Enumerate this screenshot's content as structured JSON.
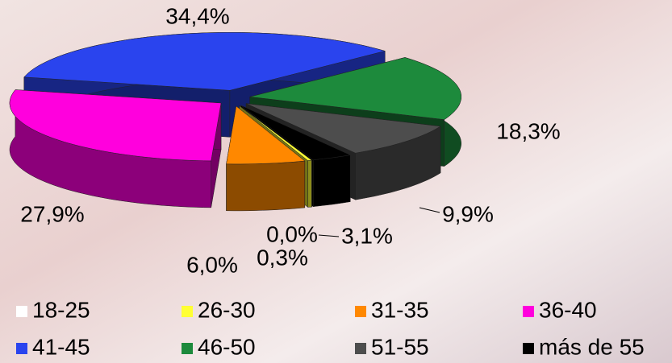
{
  "chart_data": {
    "type": "pie",
    "categories": [
      "18-25",
      "26-30",
      "31-35",
      "36-40",
      "41-45",
      "46-50",
      "51-55",
      "más de 55"
    ],
    "values": [
      0.0,
      0.3,
      6.0,
      27.9,
      34.4,
      18.3,
      9.9,
      3.1
    ],
    "value_labels": [
      "0,0%",
      "0,3%",
      "6,0%",
      "27,9%",
      "34,4%",
      "18,3%",
      "9,9%",
      "3,1%"
    ],
    "colors": [
      "#ffffff",
      "#ffff33",
      "#ff8800",
      "#ff00dd",
      "#2a44ee",
      "#1d8a3c",
      "#4d4d4d",
      "#000000"
    ],
    "legend": "bottom"
  }
}
